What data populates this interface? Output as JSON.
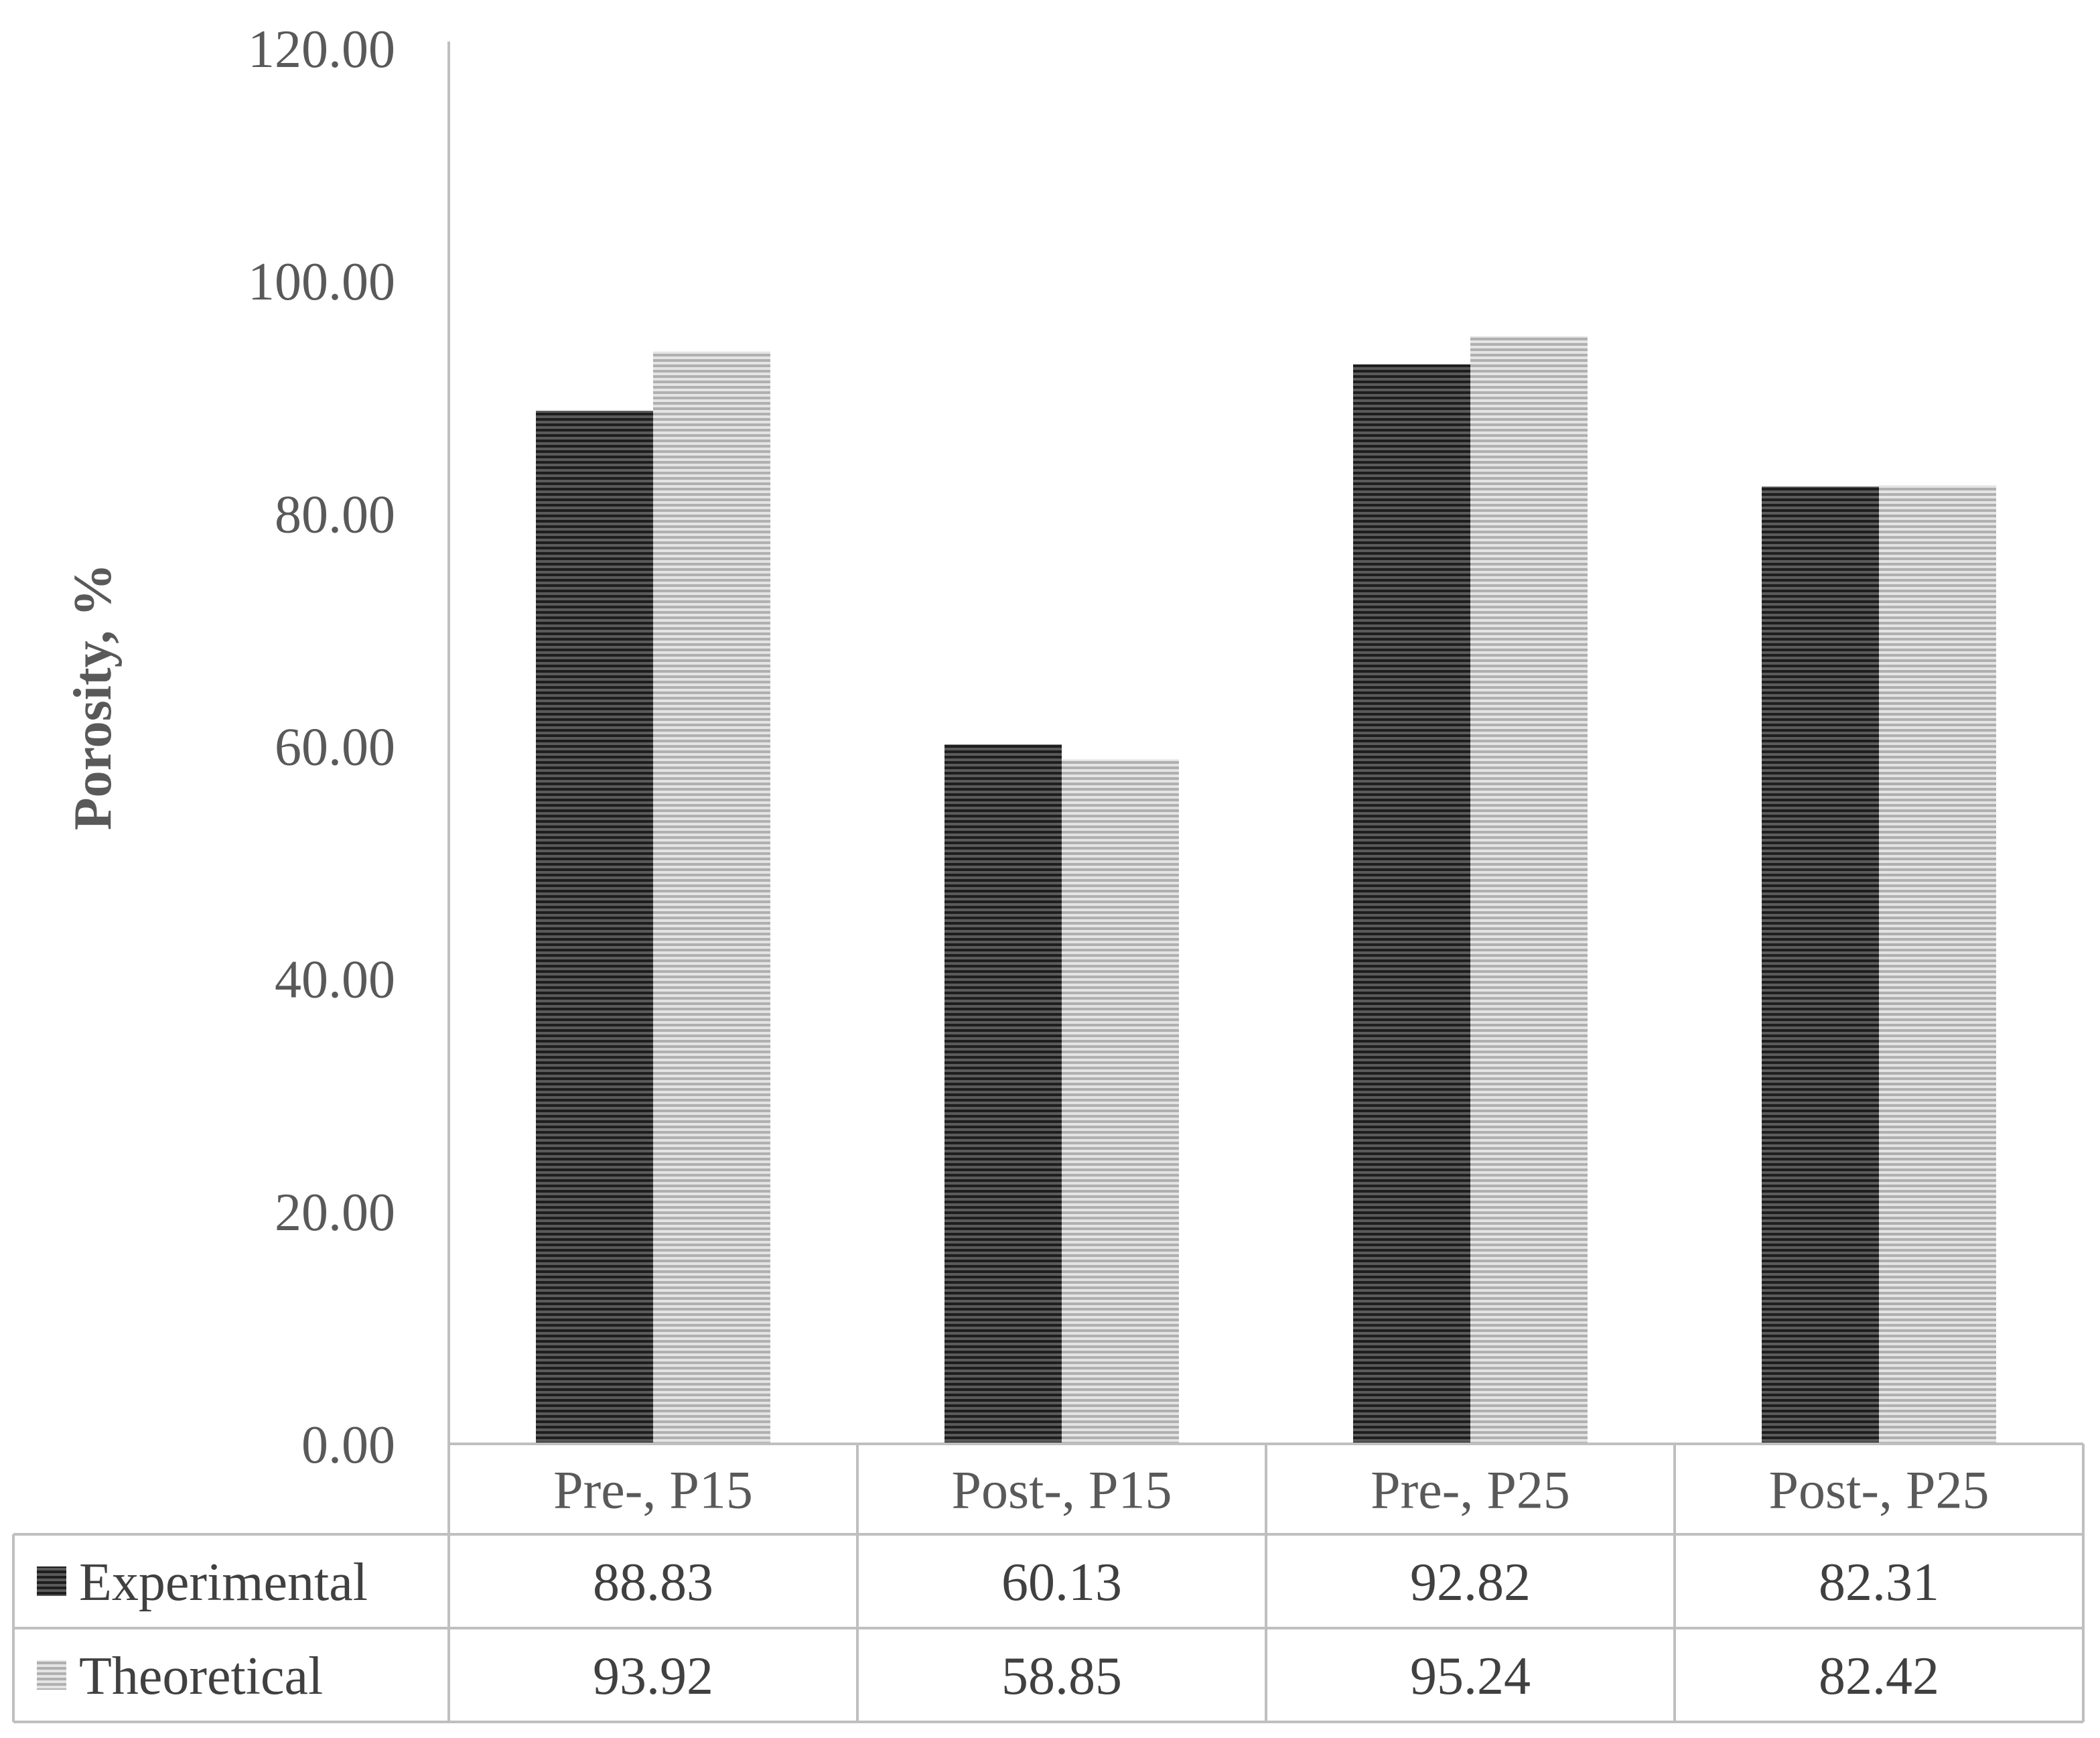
{
  "chart_data": {
    "type": "bar",
    "categories": [
      "Pre-, P15",
      "Post-, P15",
      "Pre-, P25",
      "Post-, P25"
    ],
    "series": [
      {
        "name": "Experimental",
        "values": [
          "88.83",
          "60.13",
          "92.82",
          "82.31"
        ],
        "color": "#404040",
        "pattern": "horizontal-stripes-dark"
      },
      {
        "name": "Theoretical",
        "values": [
          "93.92",
          "58.85",
          "95.24",
          "82.42"
        ],
        "color": "#c8c8c8",
        "pattern": "horizontal-stripes-light"
      }
    ],
    "yticks": [
      "0.00",
      "20.00",
      "40.00",
      "60.00",
      "80.00",
      "100.00",
      "120.00"
    ],
    "ylim": [
      0,
      120
    ],
    "ylabel": "Porosity, %",
    "xlabel": "",
    "grid": false,
    "legend": "data-table"
  }
}
